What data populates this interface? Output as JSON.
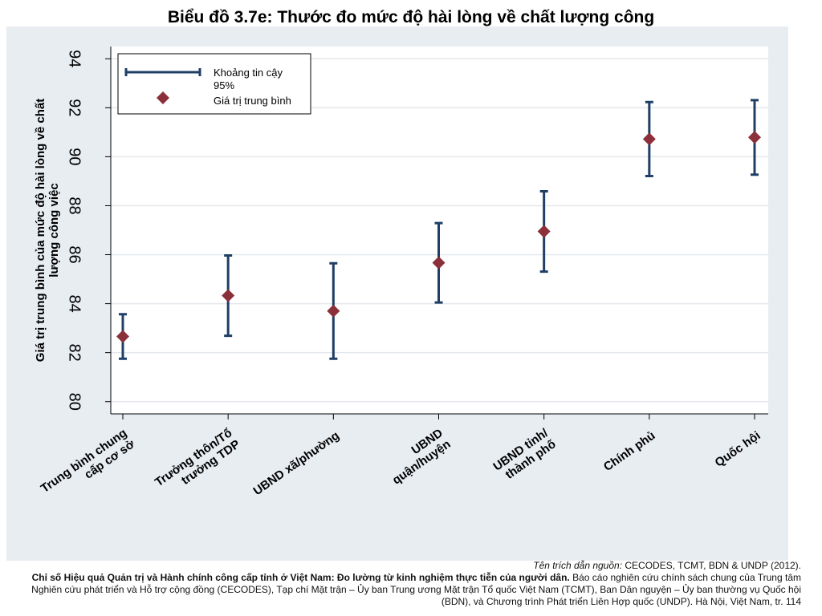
{
  "chart_data": {
    "type": "errorbar",
    "title": "Biểu đồ 3.7e: Thước đo mức độ hài lòng về chất lượng công",
    "ylabel": "Giá trị trung bình của mức độ hài lòng về chất\nlượng công việc",
    "categories": [
      "Trung bình chung\ncấp cơ sở",
      "Trưởng thôn/Tổ\ntrưởng TDP",
      "UBND xã/phường",
      "UBND\nquận/huyện",
      "UBND tỉnh/\nthành phố",
      "Chính phủ",
      "Quốc hội"
    ],
    "values": [
      82.66,
      84.33,
      83.7,
      85.67,
      86.95,
      90.72,
      90.79
    ],
    "errors": [
      0.91,
      1.64,
      1.95,
      1.62,
      1.64,
      1.51,
      1.52
    ],
    "bar_color": "#1f3f66",
    "marker_color": "#8b2f3a",
    "ylim": [
      79.5,
      94.5
    ],
    "yticks": [
      80,
      82,
      84,
      86,
      88,
      90,
      92,
      94
    ],
    "grid": true,
    "legend": {
      "interval": "Khoảng tin cậy\n95%",
      "mean": "Giá trị trung bình"
    },
    "source_label": "Tên trích dẫn nguồn:",
    "source": "CECODES, TCMT, BDN & UNDP (2012).",
    "citation_bold": "Chỉ số Hiệu quả Quản trị và Hành chính công cấp tỉnh ở Việt Nam: Đo lường từ kinh nghiệm thực tiễn của người dân.",
    "citation": "Báo cáo nghiên cứu chính sách chung của Trung tâm Nghiên cứu phát triển và Hỗ trợ cộng đồng (CECODES), Tạp chí Mặt trận – Ủy ban Trung ương Mặt trận Tổ quốc Việt Nam (TCMT), Ban Dân nguyện – Ủy ban thường vụ Quốc hội (BDN), và Chương trình Phát triển Liên Hợp quốc (UNDP). Hà Nội, Việt Nam, tr. 114"
  }
}
